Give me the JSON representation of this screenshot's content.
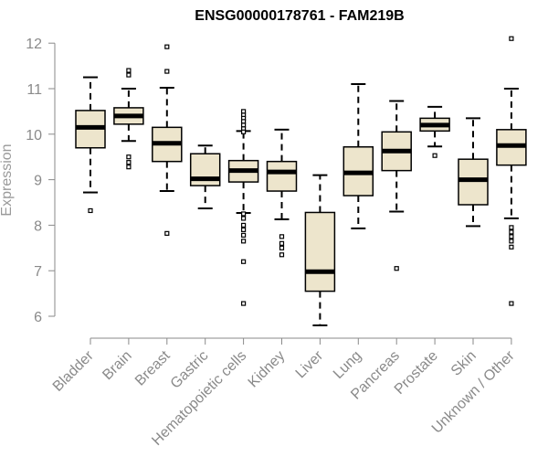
{
  "chart_data": {
    "type": "boxplot",
    "title": "ENSG00000178761 - FAM219B",
    "xlabel": "",
    "ylabel": "Expression",
    "ylim": [
      5.7,
      12.3
    ],
    "yticks": [
      6,
      7,
      8,
      9,
      10,
      11,
      12
    ],
    "grid": false,
    "legend": "none",
    "box_fill": "#ede5cc",
    "categories": [
      "Bladder",
      "Brain",
      "Breast",
      "Gastric",
      "Hematopoietic cells",
      "Kidney",
      "Liver",
      "Lung",
      "Pancreas",
      "Prostate",
      "Skin",
      "Unknown / Other"
    ],
    "boxes": [
      {
        "q1": 9.7,
        "median": 10.15,
        "q3": 10.52,
        "whisker_low": 8.72,
        "whisker_high": 11.25,
        "outliers": [
          8.32
        ]
      },
      {
        "q1": 10.22,
        "median": 10.4,
        "q3": 10.58,
        "whisker_low": 9.85,
        "whisker_high": 11.0,
        "outliers": [
          11.4,
          11.3,
          9.5,
          9.38,
          9.28
        ]
      },
      {
        "q1": 9.4,
        "median": 9.8,
        "q3": 10.15,
        "whisker_low": 8.75,
        "whisker_high": 11.02,
        "outliers": [
          11.92,
          11.38,
          7.82
        ]
      },
      {
        "q1": 8.87,
        "median": 9.02,
        "q3": 9.57,
        "whisker_low": 8.37,
        "whisker_high": 9.75,
        "outliers": []
      },
      {
        "q1": 8.95,
        "median": 9.2,
        "q3": 9.42,
        "whisker_low": 8.27,
        "whisker_high": 10.07,
        "outliers": [
          10.5,
          10.42,
          10.35,
          10.28,
          10.2,
          10.12,
          10.05,
          8.25,
          8.15,
          8.0,
          7.9,
          7.78,
          7.65,
          7.2,
          6.28
        ]
      },
      {
        "q1": 8.75,
        "median": 9.17,
        "q3": 9.4,
        "whisker_low": 8.13,
        "whisker_high": 10.1,
        "outliers": [
          7.75,
          7.6,
          7.5,
          7.35
        ]
      },
      {
        "q1": 6.55,
        "median": 6.98,
        "q3": 8.28,
        "whisker_low": 5.8,
        "whisker_high": 9.1,
        "outliers": []
      },
      {
        "q1": 8.65,
        "median": 9.15,
        "q3": 9.72,
        "whisker_low": 7.93,
        "whisker_high": 11.1,
        "outliers": []
      },
      {
        "q1": 9.2,
        "median": 9.63,
        "q3": 10.05,
        "whisker_low": 8.3,
        "whisker_high": 10.73,
        "outliers": [
          7.05
        ]
      },
      {
        "q1": 10.07,
        "median": 10.2,
        "q3": 10.35,
        "whisker_low": 9.73,
        "whisker_high": 10.6,
        "outliers": [
          9.53
        ]
      },
      {
        "q1": 8.45,
        "median": 9.0,
        "q3": 9.45,
        "whisker_low": 7.98,
        "whisker_high": 10.35,
        "outliers": []
      },
      {
        "q1": 9.32,
        "median": 9.75,
        "q3": 10.1,
        "whisker_low": 8.15,
        "whisker_high": 11.0,
        "outliers": [
          12.1,
          7.95,
          7.85,
          7.75,
          7.65,
          7.52,
          6.28
        ]
      }
    ]
  }
}
